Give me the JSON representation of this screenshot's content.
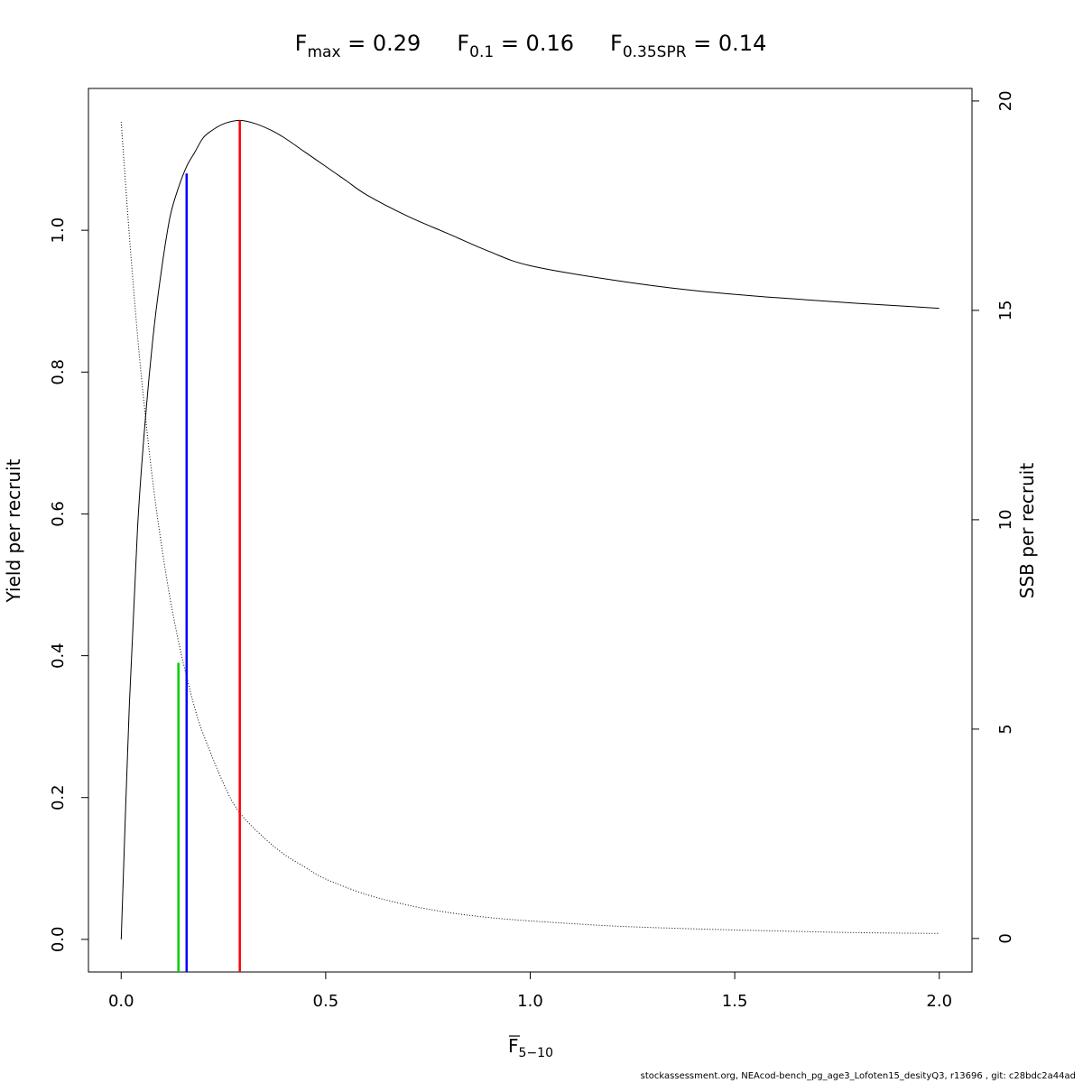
{
  "chart_data": {
    "type": "line",
    "title_parts": [
      {
        "base": "F",
        "sub": "max",
        "rest": " = 0.29"
      },
      {
        "base": "F",
        "sub": "0.1",
        "rest": " = 0.16"
      },
      {
        "base": "F",
        "sub": "0.35SPR",
        "rest": " = 0.14"
      }
    ],
    "xlabel": {
      "base": "F",
      "sub": "5−10"
    },
    "ylabel_left": "Yield per recruit",
    "ylabel_right": "SSB per recruit",
    "xlim": [
      -0.08,
      2.08
    ],
    "ylim_left": [
      -0.046,
      1.2
    ],
    "ylim_right": [
      -0.8,
      20.3
    ],
    "x_ticks": [
      0.0,
      0.5,
      1.0,
      1.5,
      2.0
    ],
    "x_tick_labels": [
      "0.0",
      "0.5",
      "1.0",
      "1.5",
      "2.0"
    ],
    "y_left_ticks": [
      0.0,
      0.2,
      0.4,
      0.6,
      0.8,
      1.0
    ],
    "y_left_tick_labels": [
      "0.0",
      "0.2",
      "0.4",
      "0.6",
      "0.8",
      "1.0"
    ],
    "y_right_ticks": [
      0,
      5,
      10,
      15,
      20
    ],
    "y_right_tick_labels": [
      "0",
      "5",
      "10",
      "15",
      "20"
    ],
    "series": [
      {
        "axis": "left",
        "style": "solid",
        "color": "#000000",
        "x": [
          0.0,
          0.02,
          0.04,
          0.06,
          0.08,
          0.1,
          0.12,
          0.14,
          0.16,
          0.18,
          0.2,
          0.22,
          0.25,
          0.29,
          0.33,
          0.37,
          0.4,
          0.45,
          0.5,
          0.55,
          0.6,
          0.7,
          0.8,
          0.9,
          1.0,
          1.2,
          1.4,
          1.6,
          1.8,
          2.0
        ],
        "y": [
          0.0,
          0.33,
          0.58,
          0.74,
          0.86,
          0.95,
          1.02,
          1.06,
          1.09,
          1.11,
          1.13,
          1.14,
          1.15,
          1.155,
          1.15,
          1.14,
          1.13,
          1.11,
          1.09,
          1.07,
          1.05,
          1.02,
          0.995,
          0.97,
          0.95,
          0.93,
          0.915,
          0.905,
          0.897,
          0.89
        ]
      },
      {
        "axis": "right",
        "style": "dotted",
        "color": "#000000",
        "x": [
          0.0,
          0.02,
          0.04,
          0.06,
          0.08,
          0.1,
          0.12,
          0.14,
          0.16,
          0.18,
          0.2,
          0.25,
          0.29,
          0.35,
          0.4,
          0.45,
          0.5,
          0.6,
          0.7,
          0.8,
          0.9,
          1.0,
          1.2,
          1.4,
          1.6,
          1.8,
          2.0
        ],
        "y": [
          19.5,
          16.8,
          14.4,
          12.4,
          10.7,
          9.3,
          8.1,
          7.1,
          6.25,
          5.5,
          4.9,
          3.7,
          3.0,
          2.4,
          2.0,
          1.7,
          1.42,
          1.05,
          0.8,
          0.62,
          0.5,
          0.42,
          0.3,
          0.23,
          0.18,
          0.14,
          0.12
        ]
      }
    ],
    "reference_lines": [
      {
        "label": "Fmax",
        "x": 0.29,
        "y_top": 1.155,
        "color": "#ff0000"
      },
      {
        "label": "F0.1",
        "x": 0.16,
        "y_top": 1.08,
        "color": "#0000ff"
      },
      {
        "label": "F0.35SPR",
        "x": 0.14,
        "y_top": 0.39,
        "color": "#00cc00"
      }
    ]
  },
  "footer": "stockassessment.org, NEAcod-bench_pg_age3_Lofoten15_desityQ3, r13696 , git: c28bdc2a44ad"
}
